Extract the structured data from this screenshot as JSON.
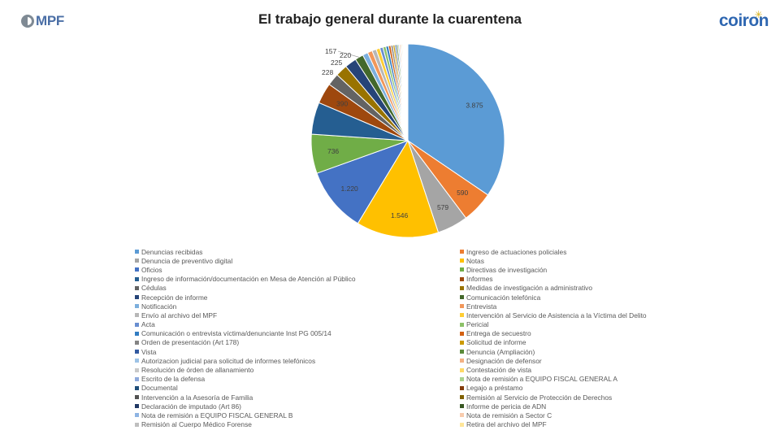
{
  "header": {
    "left_logo_text": "MPF",
    "right_logo_text": "coiron",
    "left_logo_icon": "mpf-logo-icon",
    "right_logo_icon": "coiron-logo-icon"
  },
  "chart_data": {
    "type": "pie",
    "title": "El trabajo general durante la cuarentena",
    "legend_position": "bottom",
    "slices": [
      {
        "name": "Denuncias recibidas",
        "value": 3875,
        "label": "3.875",
        "color": "#5b9bd5"
      },
      {
        "name": "Ingreso de actuaciones policiales",
        "value": 590,
        "label": "590",
        "color": "#ed7d31"
      },
      {
        "name": "Denuncia de preventivo digital",
        "value": 579,
        "label": "579",
        "color": "#a5a5a5"
      },
      {
        "name": "Notas",
        "value": 1546,
        "label": "1.546",
        "color": "#ffc000"
      },
      {
        "name": "Oficios",
        "value": 1220,
        "label": "1.220",
        "color": "#4472c4"
      },
      {
        "name": "Directivas de investigación",
        "value": 736,
        "label": "736",
        "color": "#70ad47"
      },
      {
        "name": "Ingreso de información/documentación en Mesa de Atención al Público",
        "value": 600,
        "label": "",
        "color": "#255e91"
      },
      {
        "name": "Informes",
        "value": 390,
        "label": "390",
        "color": "#9e480e"
      },
      {
        "name": "Cédulas",
        "value": 228,
        "label": "228",
        "color": "#636363"
      },
      {
        "name": "Medidas de investigación a administrativo",
        "value": 225,
        "label": "225",
        "color": "#997300"
      },
      {
        "name": "Recepción de informe",
        "value": 220,
        "label": "220",
        "color": "#264478"
      },
      {
        "name": "Comunicación telefónica",
        "value": 157,
        "label": "157",
        "color": "#43682b"
      },
      {
        "name": "Notificación",
        "value": 100,
        "label": "",
        "color": "#7cafdd"
      },
      {
        "name": "Entrevista",
        "value": 90,
        "label": "",
        "color": "#f1975a"
      },
      {
        "name": "Envío al archivo del MPF",
        "value": 80,
        "label": "",
        "color": "#b7b7b7"
      },
      {
        "name": "Intervención al Servicio de Asistencia a la Víctima del Delito",
        "value": 70,
        "label": "",
        "color": "#ffcd33"
      },
      {
        "name": "Acta",
        "value": 60,
        "label": "",
        "color": "#698ed0"
      },
      {
        "name": "Pericial",
        "value": 55,
        "label": "",
        "color": "#8cc168"
      },
      {
        "name": "Comunicación o entrevista víctima/denunciante Inst PG 005/14",
        "value": 50,
        "label": "",
        "color": "#327dc2"
      },
      {
        "name": "Entrega de secuestro",
        "value": 45,
        "label": "",
        "color": "#d26012"
      },
      {
        "name": "Orden de presentación (Art 178)",
        "value": 40,
        "label": "",
        "color": "#848484"
      },
      {
        "name": "Solicitud de informe",
        "value": 35,
        "label": "",
        "color": "#cc9a00"
      },
      {
        "name": "Vista",
        "value": 30,
        "label": "",
        "color": "#335aa1"
      },
      {
        "name": "Denuncia (Ampliación)",
        "value": 28,
        "label": "",
        "color": "#5a8a39"
      },
      {
        "name": "Autorizacion judicial para solicitud de informes telefónicos",
        "value": 25,
        "label": "",
        "color": "#9dc3e6"
      },
      {
        "name": "Designación de defensor",
        "value": 22,
        "label": "",
        "color": "#f4b183"
      },
      {
        "name": "Resolución de órden de allanamiento",
        "value": 20,
        "label": "",
        "color": "#c9c9c9"
      },
      {
        "name": "Contestación de vista",
        "value": 18,
        "label": "",
        "color": "#ffd966"
      },
      {
        "name": "Escrito de la defensa",
        "value": 16,
        "label": "",
        "color": "#8faadc"
      },
      {
        "name": "Nota de remisión a EQUIPO FISCAL GENERAL A",
        "value": 14,
        "label": "",
        "color": "#a9d18e"
      },
      {
        "name": "Documental",
        "value": 12,
        "label": "",
        "color": "#1f4e79"
      },
      {
        "name": "Legajo a préstamo",
        "value": 10,
        "label": "",
        "color": "#843c0c"
      },
      {
        "name": "Intervención a la Asesoría de Familia",
        "value": 9,
        "label": "",
        "color": "#525252"
      },
      {
        "name": "Remisión al Servicio de Protección de Derechos",
        "value": 8,
        "label": "",
        "color": "#7f6000"
      },
      {
        "name": "Declaración de imputado (Art 86)",
        "value": 7,
        "label": "",
        "color": "#203864"
      },
      {
        "name": "Informe de pericia de ADN",
        "value": 6,
        "label": "",
        "color": "#385723"
      },
      {
        "name": "Nota de remisión a EQUIPO FISCAL GENERAL B",
        "value": 5,
        "label": "",
        "color": "#8eb4e3"
      },
      {
        "name": "Nota de remisión a Sector C",
        "value": 5,
        "label": "",
        "color": "#f8cbad"
      },
      {
        "name": "Remisión al Cuerpo Médico Forense",
        "value": 4,
        "label": "",
        "color": "#bfbfbf"
      },
      {
        "name": "Retira del archivo del MPF",
        "value": 4,
        "label": "",
        "color": "#ffe699"
      }
    ]
  }
}
